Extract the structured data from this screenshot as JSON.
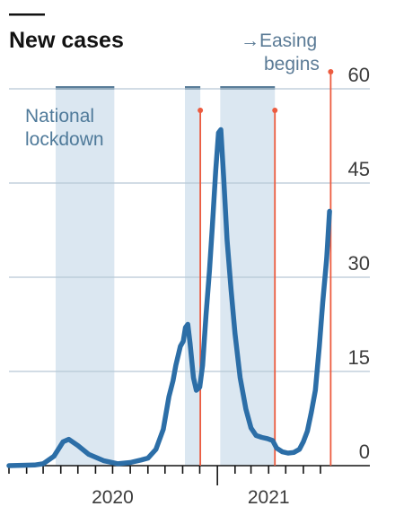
{
  "chart_data": {
    "type": "line",
    "title": "New cases",
    "xlabel": "",
    "ylabel": "",
    "ylim": [
      0,
      60
    ],
    "yticks": [
      0,
      15,
      30,
      45,
      60
    ],
    "year_labels": [
      "2020",
      "2021"
    ],
    "grid": true,
    "colors": {
      "line": "#2c6ea7",
      "band": "#dbe7f1",
      "band_top": "#5a7d99",
      "marker": "#ec5b3f",
      "grid": "#b7c8d5",
      "axis": "#121212"
    },
    "annotations": {
      "lockdown_line1": "National",
      "lockdown_line2": "lockdown",
      "easing_line1": "→Easing",
      "easing_line2": "begins"
    },
    "lockdowns": [
      {
        "start": "2020-03-23",
        "end": "2020-07-04"
      },
      {
        "start": "2020-11-05",
        "end": "2020-12-02"
      },
      {
        "start": "2021-01-06",
        "end": "2021-04-12"
      }
    ],
    "markers": [
      "2020-12-02",
      "2021-04-12",
      "2021-07-19"
    ],
    "series": [
      {
        "values": [
          [
            "2020-01-01",
            0.0
          ],
          [
            "2020-02-15",
            0.1
          ],
          [
            "2020-03-01",
            0.3
          ],
          [
            "2020-03-20",
            1.5
          ],
          [
            "2020-04-05",
            3.8
          ],
          [
            "2020-04-15",
            4.2
          ],
          [
            "2020-05-01",
            3.2
          ],
          [
            "2020-05-20",
            1.8
          ],
          [
            "2020-06-15",
            0.8
          ],
          [
            "2020-07-10",
            0.3
          ],
          [
            "2020-08-01",
            0.5
          ],
          [
            "2020-08-20",
            0.9
          ],
          [
            "2020-09-01",
            1.2
          ],
          [
            "2020-09-15",
            2.6
          ],
          [
            "2020-09-28",
            5.8
          ],
          [
            "2020-10-08",
            11.0
          ],
          [
            "2020-10-15",
            13.5
          ],
          [
            "2020-10-20",
            16.0
          ],
          [
            "2020-10-28",
            19.0
          ],
          [
            "2020-11-02",
            19.8
          ],
          [
            "2020-11-06",
            22.0
          ],
          [
            "2020-11-10",
            22.5
          ],
          [
            "2020-11-14",
            19.5
          ],
          [
            "2020-11-20",
            14.0
          ],
          [
            "2020-11-25",
            12.0
          ],
          [
            "2020-12-01",
            12.5
          ],
          [
            "2020-12-06",
            16.0
          ],
          [
            "2020-12-12",
            24.0
          ],
          [
            "2020-12-18",
            31.0
          ],
          [
            "2020-12-23",
            38.0
          ],
          [
            "2020-12-29",
            47.0
          ],
          [
            "2021-01-03",
            53.0
          ],
          [
            "2021-01-07",
            53.5
          ],
          [
            "2021-01-12",
            46.0
          ],
          [
            "2021-01-18",
            36.0
          ],
          [
            "2021-01-25",
            28.0
          ],
          [
            "2021-02-01",
            21.0
          ],
          [
            "2021-02-10",
            14.0
          ],
          [
            "2021-02-20",
            9.0
          ],
          [
            "2021-03-01",
            6.0
          ],
          [
            "2021-03-10",
            4.8
          ],
          [
            "2021-03-20",
            4.5
          ],
          [
            "2021-03-30",
            4.3
          ],
          [
            "2021-04-08",
            4.0
          ],
          [
            "2021-04-15",
            2.8
          ],
          [
            "2021-04-25",
            2.2
          ],
          [
            "2021-05-05",
            2.0
          ],
          [
            "2021-05-15",
            2.1
          ],
          [
            "2021-05-25",
            2.6
          ],
          [
            "2021-06-01",
            3.8
          ],
          [
            "2021-06-08",
            5.5
          ],
          [
            "2021-06-15",
            8.5
          ],
          [
            "2021-06-22",
            12.0
          ],
          [
            "2021-06-29",
            19.0
          ],
          [
            "2021-07-05",
            26.0
          ],
          [
            "2021-07-12",
            33.0
          ],
          [
            "2021-07-17",
            40.5
          ]
        ]
      }
    ]
  }
}
